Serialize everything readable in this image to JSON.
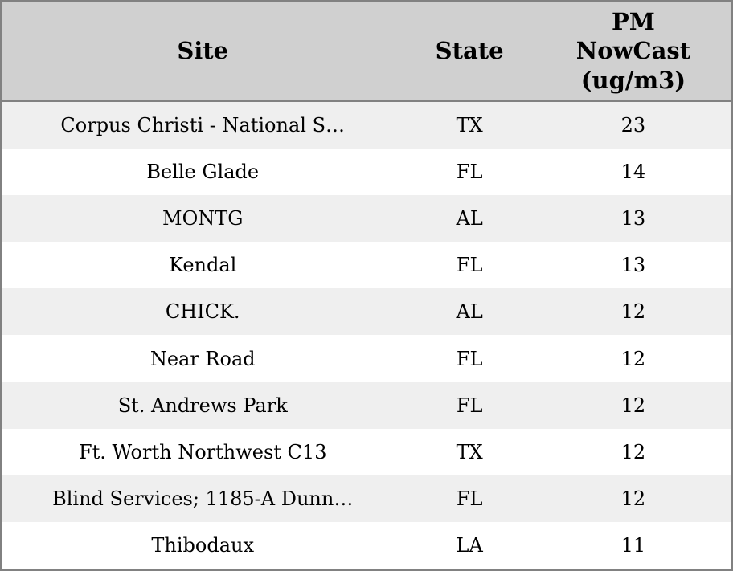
{
  "colors": {
    "header_bg": "#d0d0d0",
    "row_stripe": "#efefef",
    "row_plain": "#ffffff",
    "border": "#818181",
    "text": "#000000"
  },
  "chart_data": {
    "type": "table",
    "columns": [
      "Site",
      "State",
      "PM NowCast (ug/m3)"
    ],
    "rows": [
      {
        "site": "Corpus Christi - National S…",
        "state": "TX",
        "value": 23
      },
      {
        "site": "Belle Glade",
        "state": "FL",
        "value": 14
      },
      {
        "site": "MONTG",
        "state": "AL",
        "value": 13
      },
      {
        "site": "Kendal",
        "state": "FL",
        "value": 13
      },
      {
        "site": "CHICK.",
        "state": "AL",
        "value": 12
      },
      {
        "site": "Near Road",
        "state": "FL",
        "value": 12
      },
      {
        "site": "St. Andrews Park",
        "state": "FL",
        "value": 12
      },
      {
        "site": "Ft. Worth Northwest C13",
        "state": "TX",
        "value": 12
      },
      {
        "site": "Blind Services; 1185-A Dunn…",
        "state": "FL",
        "value": 12
      },
      {
        "site": "Thibodaux",
        "state": "LA",
        "value": 11
      }
    ]
  }
}
